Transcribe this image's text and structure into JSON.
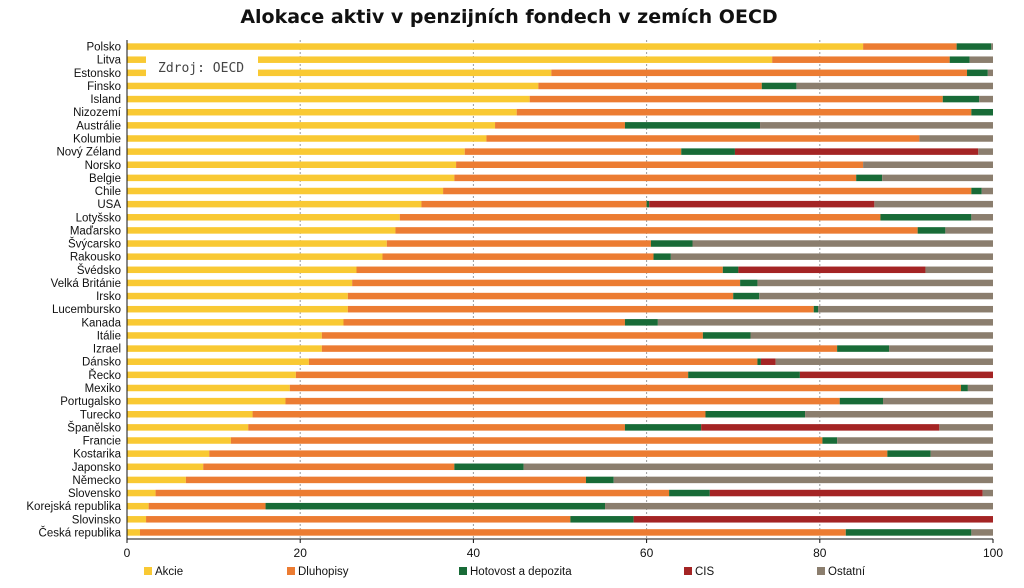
{
  "chart_data": {
    "type": "bar",
    "orientation": "horizontal",
    "stacked": true,
    "title": "Alokace aktiv v penzijních fondech v zemích OECD",
    "source": "Zdroj: OECD",
    "xlim": [
      0,
      100
    ],
    "xticks": [
      0,
      20,
      40,
      60,
      80,
      100
    ],
    "grid": "vertical dotted",
    "legend_position": "bottom",
    "colors": {
      "Akcie": "#f9c933",
      "Dluhopisy": "#ec7c32",
      "Hotovost a depozita": "#186b37",
      "CIS": "#a42424",
      "Ostatní": "#8b7e6e"
    },
    "series_names": [
      "Akcie",
      "Dluhopisy",
      "Hotovost a depozita",
      "CIS",
      "Ostatní"
    ],
    "categories": [
      "Polsko",
      "Litva",
      "Estonsko",
      "Finsko",
      "Island",
      "Nizozemí",
      "Austrálie",
      "Kolumbie",
      "Nový Zéland",
      "Norsko",
      "Belgie",
      "Chile",
      "USA",
      "Lotyšsko",
      "Maďarsko",
      "Švýcarsko",
      "Rakousko",
      "Švédsko",
      "Velká Británie",
      "Irsko",
      "Lucembursko",
      "Kanada",
      "Itálie",
      "Izrael",
      "Dánsko",
      "Řecko",
      "Mexiko",
      "Portugalsko",
      "Turecko",
      "Španělsko",
      "Francie",
      "Kostarika",
      "Japonsko",
      "Německo",
      "Slovensko",
      "Korejská republika",
      "Slovinsko",
      "Česká republika"
    ],
    "rows": [
      [
        85.0,
        10.8,
        4.0,
        0.0,
        0.2
      ],
      [
        74.5,
        20.5,
        2.3,
        0.0,
        2.7
      ],
      [
        49.0,
        48.0,
        2.4,
        0.0,
        0.6
      ],
      [
        47.5,
        25.8,
        4.0,
        0.0,
        22.7
      ],
      [
        46.5,
        47.7,
        4.2,
        0.0,
        1.6
      ],
      [
        45.0,
        52.5,
        2.5,
        0.0,
        0.0
      ],
      [
        42.5,
        15.0,
        15.6,
        0.0,
        26.9
      ],
      [
        41.5,
        50.0,
        0.0,
        0.0,
        8.5
      ],
      [
        39.0,
        25.0,
        6.2,
        28.1,
        1.7
      ],
      [
        38.0,
        47.0,
        0.0,
        0.0,
        15.0
      ],
      [
        37.8,
        46.4,
        3.0,
        0.0,
        12.8
      ],
      [
        36.5,
        61.0,
        1.2,
        0.0,
        1.3
      ],
      [
        34.0,
        26.0,
        0.3,
        26.0,
        13.7
      ],
      [
        31.5,
        55.5,
        10.5,
        0.0,
        2.5
      ],
      [
        31.0,
        60.3,
        3.2,
        0.0,
        5.5
      ],
      [
        30.0,
        30.5,
        4.8,
        0.0,
        34.7
      ],
      [
        29.5,
        31.3,
        2.0,
        0.0,
        37.2
      ],
      [
        26.5,
        42.3,
        1.8,
        21.6,
        7.8
      ],
      [
        26.0,
        44.8,
        2.0,
        0.0,
        27.2
      ],
      [
        25.5,
        44.5,
        3.0,
        0.0,
        27.0
      ],
      [
        25.5,
        53.8,
        0.5,
        0.0,
        20.2
      ],
      [
        25.0,
        32.5,
        3.8,
        0.0,
        38.7
      ],
      [
        22.5,
        44.0,
        5.5,
        0.0,
        28.0
      ],
      [
        22.5,
        59.5,
        6.0,
        0.0,
        12.0
      ],
      [
        21.0,
        51.8,
        0.4,
        1.7,
        25.1
      ],
      [
        19.5,
        45.3,
        12.9,
        22.3,
        0.0
      ],
      [
        18.8,
        77.5,
        0.8,
        0.0,
        2.9
      ],
      [
        18.3,
        64.0,
        5.0,
        0.0,
        12.7
      ],
      [
        14.5,
        52.3,
        11.5,
        0.0,
        21.7
      ],
      [
        14.0,
        43.5,
        8.8,
        27.5,
        6.2
      ],
      [
        12.0,
        68.3,
        1.7,
        0.0,
        18.0
      ],
      [
        9.5,
        78.3,
        5.0,
        0.0,
        7.2
      ],
      [
        8.8,
        29.0,
        8.0,
        0.0,
        54.2
      ],
      [
        6.8,
        46.2,
        3.2,
        0.0,
        43.8
      ],
      [
        3.3,
        59.3,
        4.7,
        31.5,
        1.2
      ],
      [
        2.5,
        13.5,
        39.2,
        0.0,
        44.8
      ],
      [
        2.2,
        49.0,
        7.3,
        41.5,
        0.0
      ],
      [
        1.5,
        81.5,
        14.5,
        0.0,
        2.5
      ]
    ]
  }
}
